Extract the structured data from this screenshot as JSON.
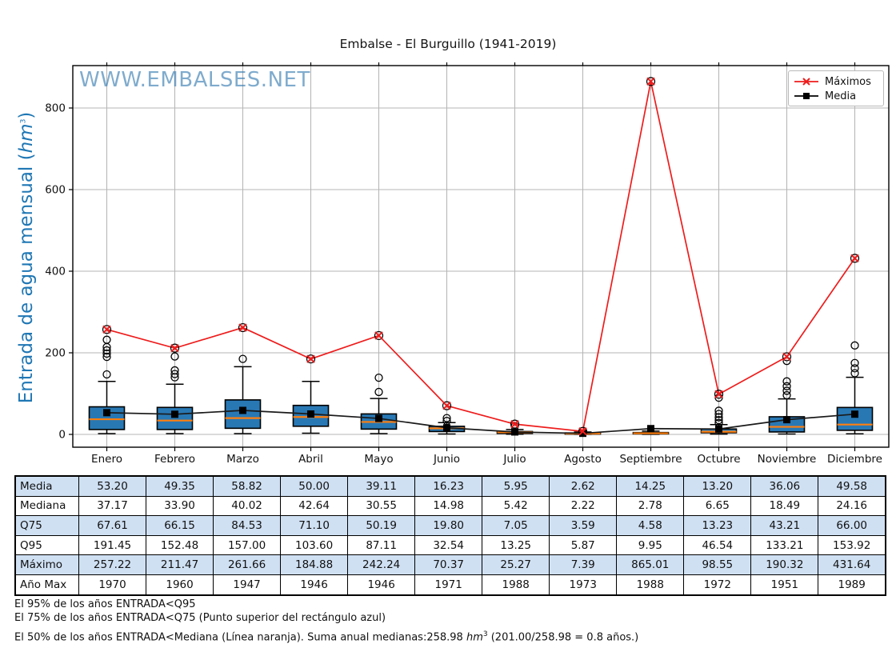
{
  "colors": {
    "box_fill": "#2878b4",
    "median": "#ff7f0e",
    "max_line": "#ee1c1c",
    "media_line": "#1a1a1a",
    "grid": "#b4b4b4",
    "ylabel": "#1f77b4",
    "watermark": "#74a7cf",
    "table_shade": "#cfe0f3"
  },
  "chart_data": {
    "type": "boxplot+line",
    "title": "Embalse - El Burguillo (1941-2019)",
    "watermark": "WWW.EMBALSES.NET",
    "ylabel": {
      "pre": "Entrada de agua mensual (",
      "unit": "hm",
      "sup": "3",
      "post": ")"
    },
    "months": [
      "Enero",
      "Febrero",
      "Marzo",
      "Abril",
      "Mayo",
      "Junio",
      "Julio",
      "Agosto",
      "Septiembre",
      "Octubre",
      "Noviembre",
      "Diciembre"
    ],
    "yticks": [
      0,
      200,
      400,
      600,
      800
    ],
    "ylim": [
      -33,
      902
    ],
    "grid": true,
    "legend": [
      {
        "label": "Máximos",
        "marker": "x",
        "color": "#ee1c1c"
      },
      {
        "label": "Media",
        "marker": "square",
        "color": "#000000"
      }
    ],
    "series": {
      "media": [
        53.2,
        49.35,
        58.82,
        50.0,
        39.11,
        16.23,
        5.95,
        2.62,
        14.25,
        13.2,
        36.06,
        49.58
      ],
      "mediana": [
        37.17,
        33.9,
        40.02,
        42.64,
        30.55,
        14.98,
        5.42,
        2.22,
        2.78,
        6.65,
        18.49,
        24.16
      ],
      "q75": [
        67.61,
        66.15,
        84.53,
        71.1,
        50.19,
        19.8,
        7.05,
        3.59,
        4.58,
        13.23,
        43.21,
        66.0
      ],
      "q95": [
        191.45,
        152.48,
        157.0,
        103.6,
        87.11,
        32.54,
        13.25,
        5.87,
        9.95,
        46.54,
        133.21,
        153.92
      ],
      "maximo": [
        257.22,
        211.47,
        261.66,
        184.88,
        242.24,
        70.37,
        25.27,
        7.39,
        865.01,
        98.55,
        190.32,
        431.64
      ],
      "anio_max": [
        1970,
        1960,
        1947,
        1946,
        1946,
        1971,
        1988,
        1973,
        1988,
        1972,
        1951,
        1989
      ],
      "q25_est": [
        12,
        12,
        15,
        20,
        13,
        7,
        2.5,
        1,
        1.3,
        4,
        6,
        10
      ],
      "whisker_low_est": [
        2,
        2,
        2,
        3,
        2,
        1,
        0.4,
        0.2,
        0.3,
        0.8,
        1,
        1.5
      ],
      "whisker_high_est": [
        130,
        123,
        166,
        130,
        88,
        29,
        12,
        6,
        8,
        24,
        87,
        140
      ],
      "outliers_est": [
        [
          147,
          190,
          198,
          206,
          214,
          232
        ],
        [
          140,
          148,
          157,
          191
        ],
        [
          185
        ],
        [],
        [
          104,
          139
        ],
        [
          33,
          40
        ],
        [
          20
        ],
        [],
        [],
        [
          28,
          35,
          42,
          50,
          58,
          90
        ],
        [
          96,
          107,
          118,
          130,
          180
        ],
        [
          150,
          162,
          175,
          218
        ]
      ]
    }
  },
  "table": {
    "rows": [
      {
        "label": "Media",
        "shaded": true,
        "values": [
          "53.20",
          "49.35",
          "58.82",
          "50.00",
          "39.11",
          "16.23",
          "5.95",
          "2.62",
          "14.25",
          "13.20",
          "36.06",
          "49.58"
        ]
      },
      {
        "label": "Mediana",
        "shaded": false,
        "values": [
          "37.17",
          "33.90",
          "40.02",
          "42.64",
          "30.55",
          "14.98",
          "5.42",
          "2.22",
          "2.78",
          "6.65",
          "18.49",
          "24.16"
        ]
      },
      {
        "label": "Q75",
        "shaded": true,
        "values": [
          "67.61",
          "66.15",
          "84.53",
          "71.10",
          "50.19",
          "19.80",
          "7.05",
          "3.59",
          "4.58",
          "13.23",
          "43.21",
          "66.00"
        ]
      },
      {
        "label": "Q95",
        "shaded": false,
        "values": [
          "191.45",
          "152.48",
          "157.00",
          "103.60",
          "87.11",
          "32.54",
          "13.25",
          "5.87",
          "9.95",
          "46.54",
          "133.21",
          "153.92"
        ]
      },
      {
        "label": "Máximo",
        "shaded": true,
        "values": [
          "257.22",
          "211.47",
          "261.66",
          "184.88",
          "242.24",
          "70.37",
          "25.27",
          "7.39",
          "865.01",
          "98.55",
          "190.32",
          "431.64"
        ]
      },
      {
        "label": "Año Max",
        "shaded": false,
        "values": [
          "1970",
          "1960",
          "1947",
          "1946",
          "1946",
          "1971",
          "1988",
          "1973",
          "1988",
          "1972",
          "1951",
          "1989"
        ]
      }
    ]
  },
  "footnotes": {
    "line1": "El 95% de los años ENTRADA<Q95",
    "line2": "El 75% de los años ENTRADA<Q75 (Punto superior del rectángulo azul)",
    "line3_pre": "El 50% de los años ENTRADA<Mediana (Línea naranja). Suma anual medianas:258.98 ",
    "line3_unit": "hm",
    "line3_sup": "3",
    "line3_post": " (201.00/258.98 = 0.8 años.)"
  }
}
